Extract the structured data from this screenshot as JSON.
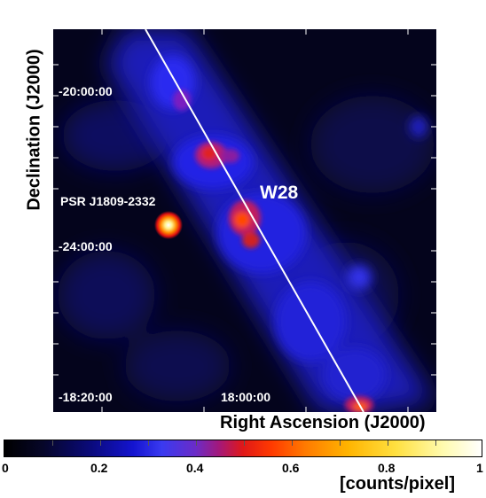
{
  "map": {
    "y_axis_label": "Declination (J2000)",
    "x_axis_label": "Right Ascension (J2000)",
    "dec_ticks": [
      "-20:00:00",
      "-24:00:00"
    ],
    "ra_ticks": [
      "-18:20:00",
      "18:00:00"
    ],
    "objects": {
      "pulsar": "PSR J1809-2332",
      "remnant": "W28"
    }
  },
  "colorbar": {
    "tick_labels": [
      "0",
      "0.2",
      "0.4",
      "0.6",
      "0.8",
      "1"
    ],
    "unit_label": "[counts/pixel]"
  }
}
